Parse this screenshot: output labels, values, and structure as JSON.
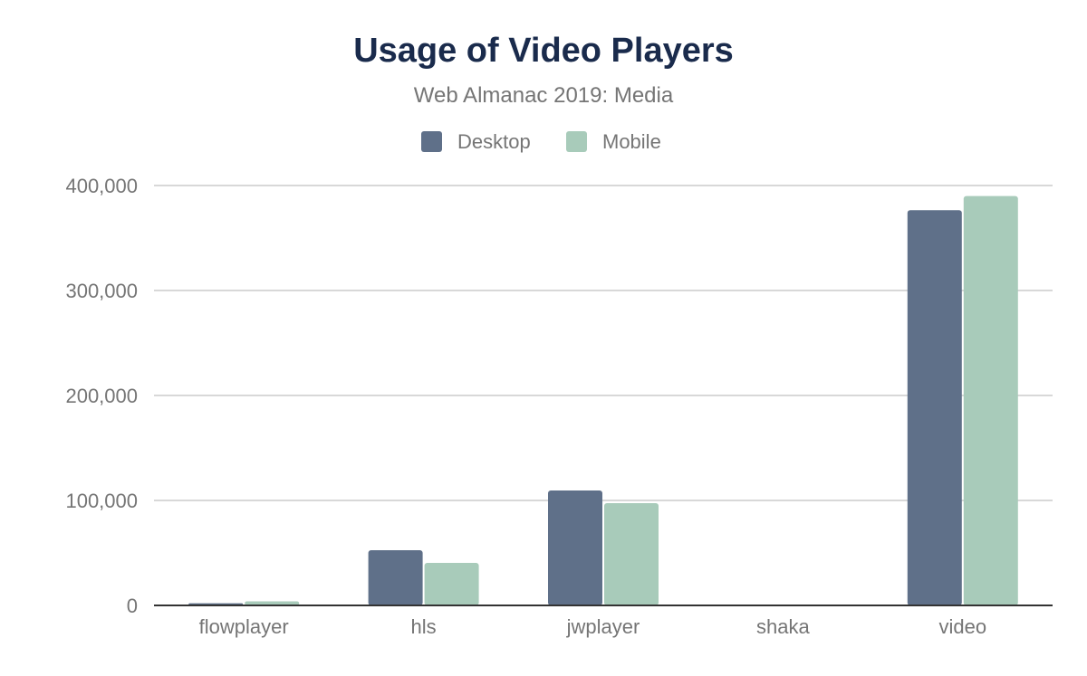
{
  "chart_data": {
    "type": "bar",
    "title": "Usage of Video Players",
    "subtitle": "Web Almanac 2019: Media",
    "categories": [
      "flowplayer",
      "hls",
      "jwplayer",
      "shaka",
      "video"
    ],
    "series": [
      {
        "name": "Desktop",
        "color": "#5f7089",
        "values": [
          2000,
          52600,
          109500,
          0,
          376500
        ]
      },
      {
        "name": "Mobile",
        "color": "#a8cbba",
        "values": [
          3900,
          40500,
          97400,
          0,
          390000
        ]
      }
    ],
    "ylim": [
      0,
      400000
    ],
    "yticks": [
      0,
      100000,
      200000,
      300000,
      400000
    ],
    "ytick_labels": [
      "0",
      "100,000",
      "200,000",
      "300,000",
      "400,000"
    ],
    "grid": true,
    "legend_position": "top",
    "colors": {
      "title": "#1a2b4c",
      "text": "#757575",
      "grid": "#cccccc",
      "axis": "#333333"
    }
  }
}
